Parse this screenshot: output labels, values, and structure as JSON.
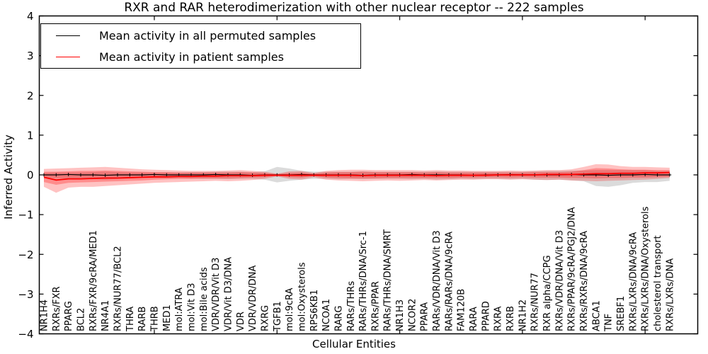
{
  "chart_data": {
    "type": "line",
    "title": "RXR and RAR heterodimerization with other nuclear receptor -- 222 samples",
    "xlabel": "Cellular Entities",
    "ylabel": "Inferred Activity",
    "ylim": [
      -4,
      4
    ],
    "yticks": [
      -4,
      -3,
      -2,
      -1,
      0,
      1,
      2,
      3,
      4
    ],
    "grid": false,
    "legend": {
      "position": "upper left",
      "items": [
        {
          "label": "Mean activity in all permuted samples",
          "color": "#000000"
        },
        {
          "label": "Mean activity in patient samples",
          "color": "#ff0000"
        }
      ]
    },
    "categories": [
      "NR1H4",
      "RXRs/FXR",
      "PPARG",
      "BCL2",
      "RXRs/FXR/9cRA/MED1",
      "NR4A1",
      "RXRs/NUR77/BCL2",
      "THRA",
      "RARB",
      "THRB",
      "MED1",
      "mol:ATRA",
      "mol:Vit D3",
      "mol:Bile acids",
      "VDR/VDR/Vit D3",
      "VDR/Vit D3/DNA",
      "VDR",
      "VDR/VDR/DNA",
      "RXRG",
      "TGFB1",
      "mol:9cRA",
      "mol:Oxysterols",
      "RPS6KB1",
      "NCOA1",
      "RARG",
      "RARs/THRs",
      "RARs/THRs/DNA/Src-1",
      "RXRs/PPAR",
      "RARs/THRs/DNA/SMRT",
      "NR1H3",
      "NCOR2",
      "PPARA",
      "RARs/VDR/DNA/Vit D3",
      "RARs/RARs/DNA/9cRA",
      "FAM120B",
      "RARA",
      "PPARD",
      "RXRA",
      "RXRB",
      "NR1H2",
      "RXRs/NUR77",
      "RXR alpha/CCPG",
      "RXRs/VDR/DNA/Vit D3",
      "RXRs/PPAR/9cRA/PGJ2/DNA",
      "RXRs/RXRs/DNA/9cRA",
      "ABCA1",
      "TNF",
      "SREBF1",
      "RXRs/LXRs/DNA/9cRA",
      "RXRs/LXRs/DNA/Oxysterols",
      "cholesterol transport",
      "RXRs/LXRs/DNA"
    ],
    "series": [
      {
        "name": "Mean activity in all permuted samples",
        "color": "#000000",
        "values": [
          0,
          0,
          0.01,
          0,
          0,
          -0.01,
          0,
          0,
          0,
          0.01,
          0,
          0,
          0,
          0,
          0.01,
          0,
          0,
          -0.01,
          0,
          0,
          0,
          0.01,
          0,
          0,
          0,
          0,
          -0.01,
          0,
          0,
          0,
          0.01,
          0,
          0,
          0,
          0,
          -0.01,
          0,
          0,
          0.01,
          0,
          0,
          0,
          0,
          0.01,
          0,
          0,
          -0.01,
          0,
          0,
          0.01,
          0,
          0
        ]
      },
      {
        "name": "Mean activity in patient samples",
        "color": "#ff0000",
        "values": [
          -0.06,
          -0.13,
          -0.1,
          -0.1,
          -0.09,
          -0.08,
          -0.08,
          -0.07,
          -0.06,
          -0.05,
          -0.05,
          -0.04,
          -0.04,
          -0.03,
          -0.03,
          -0.02,
          -0.02,
          -0.02,
          -0.01,
          -0.01,
          -0.01,
          -0.01,
          -0.01,
          -0.01,
          -0.01,
          -0.01,
          -0.02,
          -0.01,
          -0.01,
          -0.01,
          -0.01,
          -0.01,
          -0.02,
          -0.01,
          -0.01,
          -0.01,
          -0.01,
          0,
          0,
          0,
          0,
          0.01,
          0.01,
          0.01,
          0.02,
          0.03,
          0.03,
          0.04,
          0.04,
          0.05,
          0.05,
          0.06
        ]
      }
    ],
    "bands": [
      {
        "name": "permuted-range",
        "color": "#888888",
        "opacity": 0.3,
        "low": [
          -0.07,
          -0.08,
          -0.09,
          -0.08,
          -0.1,
          -0.12,
          -0.1,
          -0.09,
          -0.08,
          -0.08,
          -0.08,
          -0.08,
          -0.09,
          -0.1,
          -0.1,
          -0.11,
          -0.1,
          -0.1,
          -0.12,
          -0.19,
          -0.15,
          -0.12,
          -0.1,
          -0.1,
          -0.11,
          -0.1,
          -0.11,
          -0.1,
          -0.1,
          -0.1,
          -0.11,
          -0.1,
          -0.12,
          -0.11,
          -0.1,
          -0.11,
          -0.1,
          -0.1,
          -0.11,
          -0.1,
          -0.12,
          -0.13,
          -0.12,
          -0.14,
          -0.16,
          -0.28,
          -0.3,
          -0.26,
          -0.2,
          -0.18,
          -0.18,
          -0.15
        ],
        "high": [
          0.05,
          0.06,
          0.06,
          0.06,
          0.07,
          0.08,
          0.07,
          0.06,
          0.06,
          0.06,
          0.06,
          0.06,
          0.07,
          0.07,
          0.08,
          0.08,
          0.08,
          0.07,
          0.09,
          0.2,
          0.16,
          0.1,
          0.08,
          0.08,
          0.08,
          0.08,
          0.09,
          0.08,
          0.08,
          0.08,
          0.08,
          0.08,
          0.09,
          0.08,
          0.08,
          0.08,
          0.08,
          0.08,
          0.08,
          0.08,
          0.09,
          0.1,
          0.1,
          0.11,
          0.11,
          0.12,
          0.12,
          0.12,
          0.12,
          0.12,
          0.1,
          0.1
        ]
      },
      {
        "name": "patient-range-outer",
        "color": "#ff0000",
        "opacity": 0.24,
        "low": [
          -0.3,
          -0.45,
          -0.32,
          -0.3,
          -0.3,
          -0.28,
          -0.26,
          -0.24,
          -0.22,
          -0.2,
          -0.19,
          -0.18,
          -0.17,
          -0.16,
          -0.15,
          -0.16,
          -0.15,
          -0.13,
          -0.1,
          -0.04,
          -0.1,
          -0.12,
          -0.06,
          -0.12,
          -0.14,
          -0.15,
          -0.16,
          -0.15,
          -0.14,
          -0.15,
          -0.14,
          -0.13,
          -0.14,
          -0.13,
          -0.12,
          -0.12,
          -0.11,
          -0.11,
          -0.12,
          -0.11,
          -0.12,
          -0.13,
          -0.12,
          -0.14,
          -0.15,
          -0.16,
          -0.15,
          -0.14,
          -0.13,
          -0.12,
          -0.1,
          -0.08
        ],
        "high": [
          0.15,
          0.16,
          0.17,
          0.18,
          0.19,
          0.2,
          0.18,
          0.16,
          0.14,
          0.13,
          0.12,
          0.11,
          0.1,
          0.1,
          0.1,
          0.11,
          0.12,
          0.1,
          0.08,
          0.03,
          0.09,
          0.1,
          0.05,
          0.1,
          0.12,
          0.13,
          0.13,
          0.12,
          0.12,
          0.12,
          0.12,
          0.11,
          0.12,
          0.11,
          0.11,
          0.1,
          0.1,
          0.1,
          0.11,
          0.1,
          0.11,
          0.12,
          0.12,
          0.14,
          0.2,
          0.27,
          0.26,
          0.22,
          0.2,
          0.2,
          0.19,
          0.18
        ]
      },
      {
        "name": "patient-range-inner",
        "color": "#ff0000",
        "opacity": 0.28,
        "low": [
          -0.18,
          -0.25,
          -0.2,
          -0.19,
          -0.18,
          -0.17,
          -0.16,
          -0.15,
          -0.14,
          -0.12,
          -0.11,
          -0.1,
          -0.1,
          -0.09,
          -0.09,
          -0.09,
          -0.08,
          -0.07,
          -0.06,
          -0.02,
          -0.06,
          -0.07,
          -0.03,
          -0.07,
          -0.08,
          -0.09,
          -0.09,
          -0.09,
          -0.08,
          -0.08,
          -0.08,
          -0.08,
          -0.08,
          -0.08,
          -0.07,
          -0.07,
          -0.06,
          -0.06,
          -0.07,
          -0.06,
          -0.07,
          -0.07,
          -0.07,
          -0.08,
          -0.08,
          -0.09,
          -0.08,
          -0.08,
          -0.07,
          -0.07,
          -0.06,
          -0.05
        ],
        "high": [
          0.08,
          0.08,
          0.09,
          0.1,
          0.1,
          0.11,
          0.1,
          0.09,
          0.08,
          0.07,
          0.07,
          0.06,
          0.06,
          0.06,
          0.06,
          0.06,
          0.07,
          0.06,
          0.05,
          0.02,
          0.05,
          0.06,
          0.03,
          0.06,
          0.07,
          0.07,
          0.08,
          0.07,
          0.07,
          0.07,
          0.07,
          0.06,
          0.07,
          0.06,
          0.06,
          0.06,
          0.06,
          0.06,
          0.06,
          0.06,
          0.07,
          0.07,
          0.07,
          0.08,
          0.12,
          0.17,
          0.16,
          0.14,
          0.13,
          0.13,
          0.12,
          0.12
        ]
      }
    ],
    "xtick_category_indices": [
      9,
      19,
      29,
      39,
      49
    ]
  }
}
